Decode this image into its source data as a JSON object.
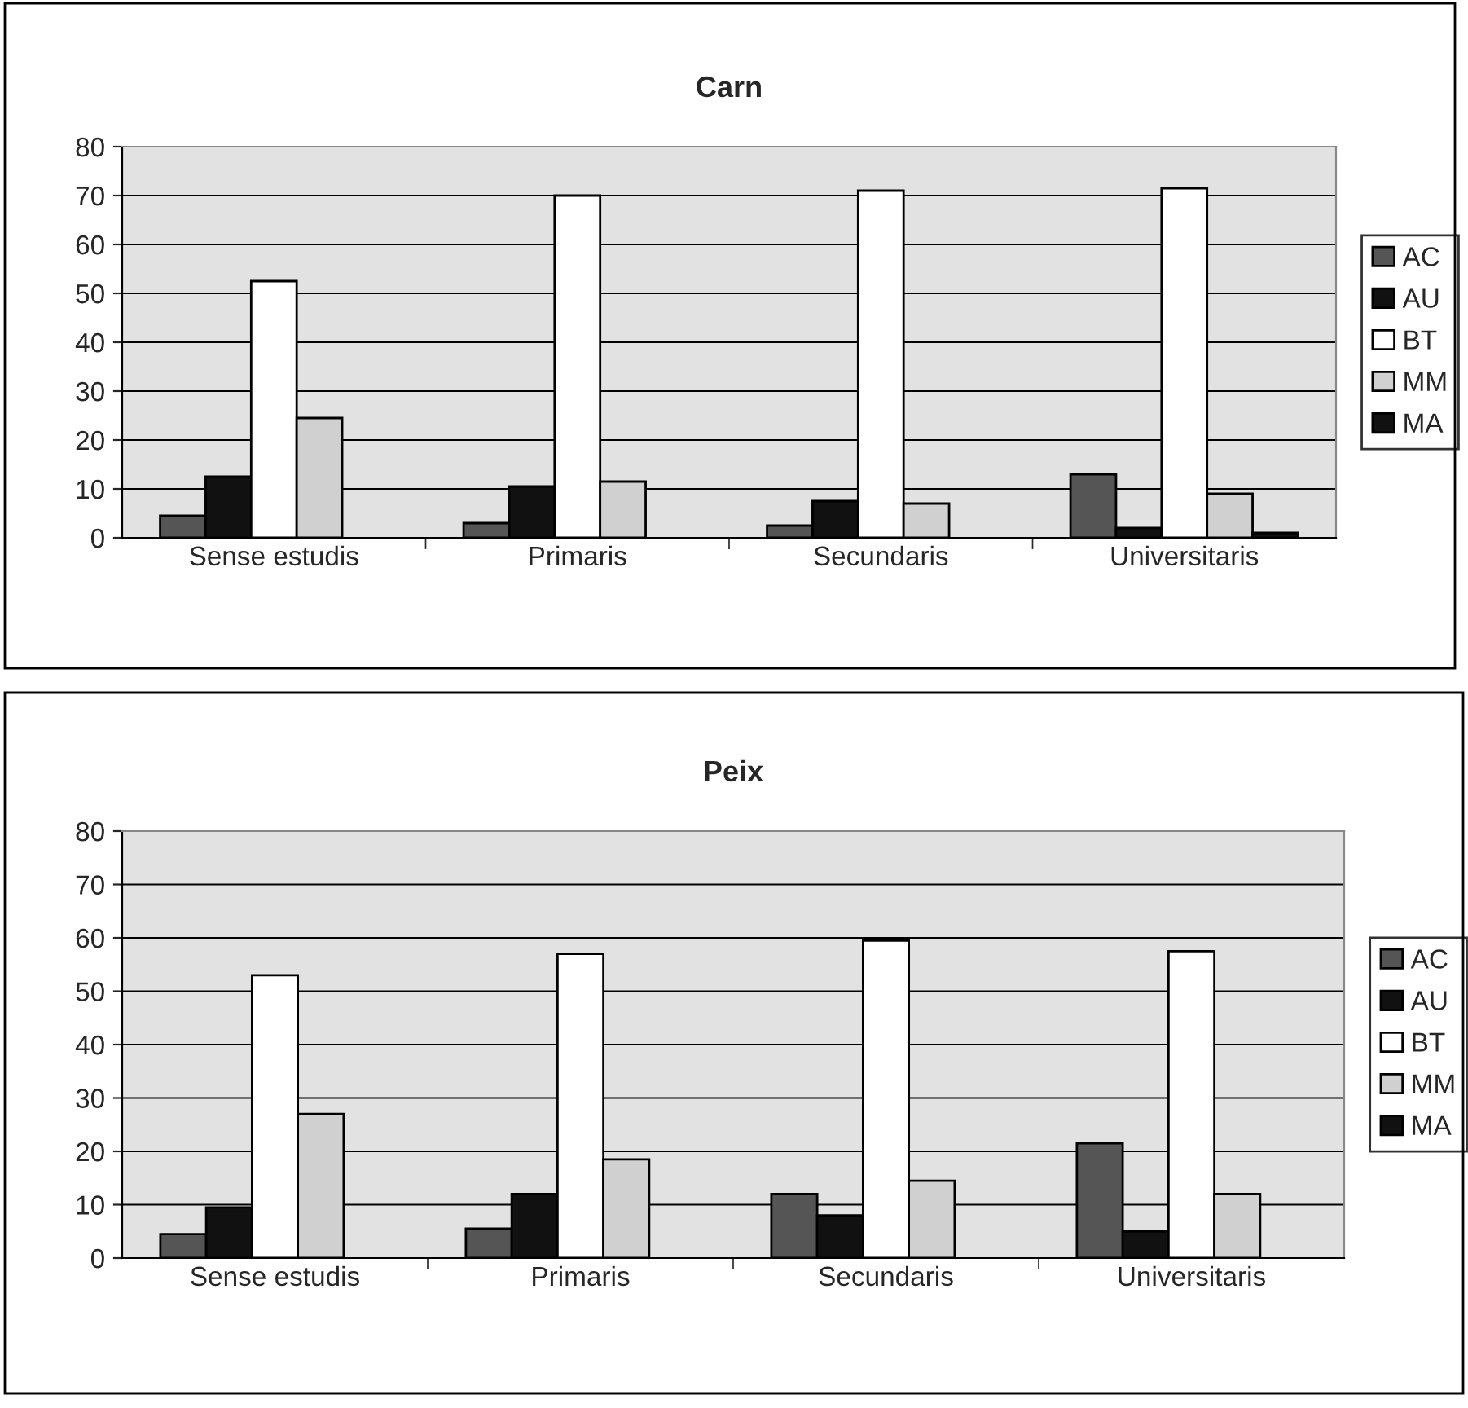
{
  "chart_data": [
    {
      "type": "bar",
      "title": "Carn",
      "categories": [
        "Sense estudis",
        "Primaris",
        "Secundaris",
        "Universitaris"
      ],
      "series": [
        {
          "name": "AC",
          "color": "#555555",
          "values": [
            4.5,
            3,
            2.5,
            13
          ]
        },
        {
          "name": "AU",
          "color": "#111111",
          "values": [
            12.5,
            10.5,
            7.5,
            2
          ]
        },
        {
          "name": "BT",
          "color": "#ffffff",
          "values": [
            52.5,
            70,
            71,
            71.5
          ]
        },
        {
          "name": "MM",
          "color": "#d0d0d0",
          "values": [
            24.5,
            11.5,
            7,
            9
          ]
        },
        {
          "name": "MA",
          "color": "#111111",
          "values": [
            null,
            null,
            null,
            1
          ]
        }
      ],
      "ylim": [
        0,
        80
      ],
      "yticks": [
        0,
        10,
        20,
        30,
        40,
        50,
        60,
        70,
        80
      ],
      "grid": "y",
      "legend": "right"
    },
    {
      "type": "bar",
      "title": "Peix",
      "categories": [
        "Sense estudis",
        "Primaris",
        "Secundaris",
        "Universitaris"
      ],
      "series": [
        {
          "name": "AC",
          "color": "#555555",
          "values": [
            4.5,
            5.5,
            12,
            21.5
          ]
        },
        {
          "name": "AU",
          "color": "#111111",
          "values": [
            9.5,
            12,
            8,
            5
          ]
        },
        {
          "name": "BT",
          "color": "#ffffff",
          "values": [
            53,
            57,
            59.5,
            57.5
          ]
        },
        {
          "name": "MM",
          "color": "#d0d0d0",
          "values": [
            27,
            18.5,
            14.5,
            12
          ]
        },
        {
          "name": "MA",
          "color": "#111111",
          "values": [
            null,
            null,
            null,
            null
          ]
        }
      ],
      "ylim": [
        0,
        80
      ],
      "yticks": [
        0,
        10,
        20,
        30,
        40,
        50,
        60,
        70,
        80
      ],
      "grid": "y",
      "legend": "right"
    }
  ]
}
